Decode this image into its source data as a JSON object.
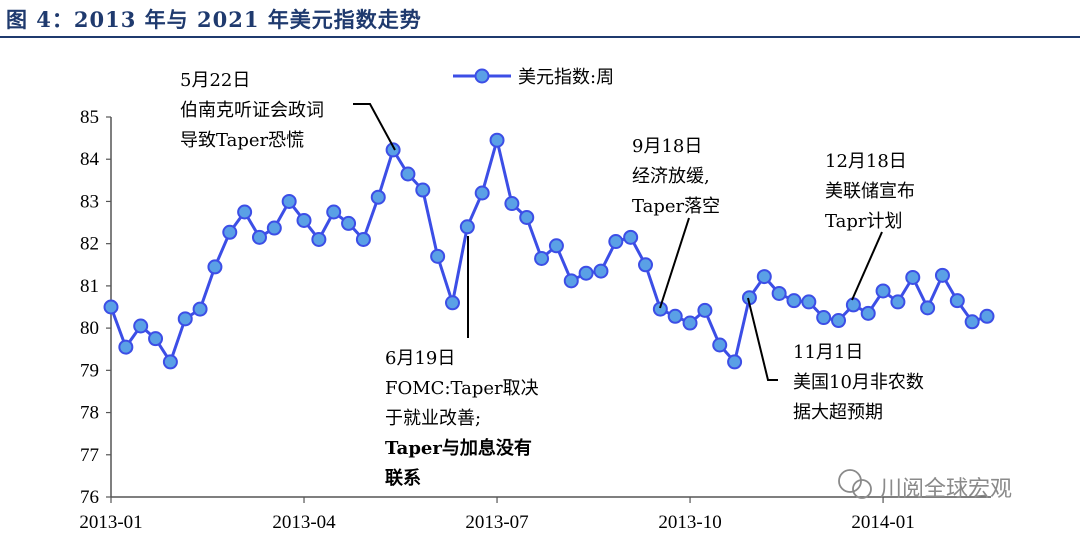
{
  "figure_title": "图 4：2013 年与 2021 年美元指数走势",
  "watermark": "川阅全球宏观",
  "chart_data": {
    "type": "line",
    "ylim": [
      76,
      85
    ],
    "yticks": [
      76,
      77,
      78,
      79,
      80,
      81,
      82,
      83,
      84,
      85
    ],
    "xtick_labels": [
      "2013-01",
      "2013-04",
      "2013-07",
      "2013-10",
      "2014-01"
    ],
    "xtick_index": [
      0,
      13,
      26,
      39,
      52
    ],
    "series": [
      {
        "name": "美元指数:周",
        "color": "#3c4ee6",
        "marker_color": "#5aa0e6",
        "values": [
          80.5,
          79.55,
          80.05,
          79.75,
          79.2,
          80.22,
          80.45,
          81.45,
          82.27,
          82.75,
          82.15,
          82.37,
          83.0,
          82.55,
          82.1,
          82.75,
          82.48,
          82.1,
          83.1,
          84.22,
          83.65,
          83.27,
          81.7,
          80.6,
          82.4,
          83.2,
          84.45,
          82.95,
          82.62,
          81.65,
          81.95,
          81.12,
          81.3,
          81.35,
          82.05,
          82.15,
          81.5,
          80.45,
          80.28,
          80.12,
          80.42,
          79.6,
          79.2,
          80.72,
          81.22,
          80.82,
          80.65,
          80.62,
          80.25,
          80.18,
          80.55,
          80.35,
          80.88,
          80.62,
          81.2,
          80.48,
          81.25,
          80.65,
          80.15,
          80.28
        ]
      }
    ],
    "annotations": [
      {
        "id": "ann-may22",
        "lines": [
          "5月22日",
          "伯南克听证会政词",
          "导致Taper恐慌"
        ],
        "bold": [
          false,
          false,
          false
        ],
        "target_index": 19
      },
      {
        "id": "ann-jun19",
        "lines": [
          "6月19日",
          "FOMC:Taper取决",
          "于就业改善;",
          "Taper与加息没有",
          "联系"
        ],
        "bold": [
          false,
          false,
          false,
          true,
          true
        ],
        "target_index": 24
      },
      {
        "id": "ann-sep18",
        "lines": [
          "9月18日",
          "经济放缓,",
          "Taper落空"
        ],
        "bold": [
          false,
          false,
          false
        ],
        "target_index": 37
      },
      {
        "id": "ann-nov1",
        "lines": [
          "11月1日",
          "美国10月非农数",
          "据大超预期"
        ],
        "bold": [
          false,
          false,
          false
        ],
        "target_index": 43
      },
      {
        "id": "ann-dec18",
        "lines": [
          "12月18日",
          "美联储宣布",
          "Tapr计划"
        ],
        "bold": [
          false,
          false,
          false
        ],
        "target_index": 50
      }
    ]
  }
}
